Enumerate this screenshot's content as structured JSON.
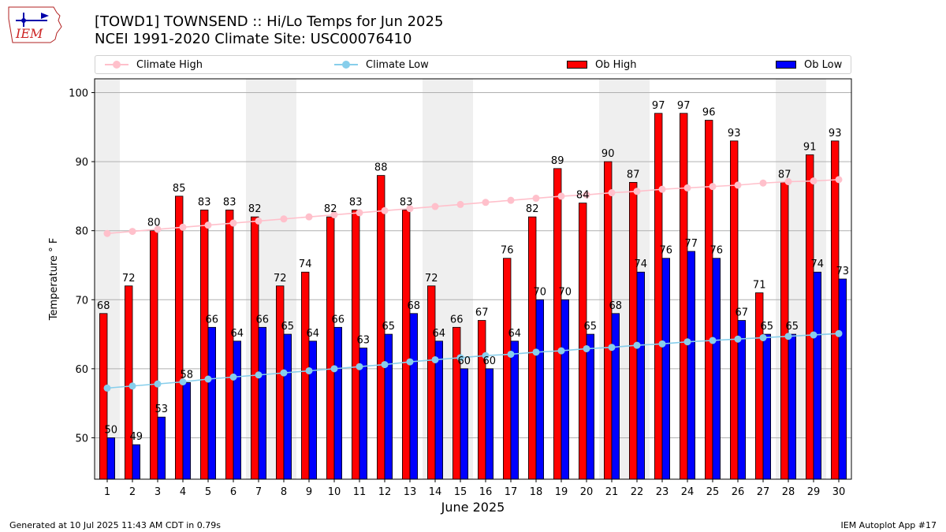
{
  "header": {
    "title_line1": "[TOWD1] TOWNSEND :: Hi/Lo Temps for Jun 2025",
    "title_line2": "NCEI 1991-2020 Climate Site: USC00076410"
  },
  "logo": {
    "text": "IEM",
    "icon": "iem-iowa-logo-icon"
  },
  "legend": {
    "climate_high": "Climate High",
    "climate_low": "Climate Low",
    "ob_high": "Ob High",
    "ob_low": "Ob Low"
  },
  "footer": {
    "left": "Generated at 10 Jul 2025 11:43 AM CDT in 0.79s",
    "right": "IEM Autoplot App #17"
  },
  "colors": {
    "ob_high": "#ff0000",
    "ob_low": "#0000ff",
    "climate_high": "#ffc0cb",
    "climate_low": "#87ceeb",
    "weekend_band": "#efefef",
    "grid": "#b0b0b0"
  },
  "chart_data": {
    "type": "bar",
    "xlabel": "June 2025",
    "ylabel": "Temperature ° F",
    "ylim": [
      44,
      102
    ],
    "yticks": [
      50,
      60,
      70,
      80,
      90,
      100
    ],
    "grid": "horizontal",
    "legend_position": "top",
    "categories": [
      "1",
      "2",
      "3",
      "4",
      "5",
      "6",
      "7",
      "8",
      "9",
      "10",
      "11",
      "12",
      "13",
      "14",
      "15",
      "16",
      "17",
      "18",
      "19",
      "20",
      "21",
      "22",
      "23",
      "24",
      "25",
      "26",
      "27",
      "28",
      "29",
      "30"
    ],
    "shaded_days": [
      1,
      7,
      8,
      14,
      15,
      21,
      22,
      28,
      29
    ],
    "series": [
      {
        "name": "Ob High",
        "kind": "bar",
        "values": [
          68,
          72,
          80,
          85,
          83,
          83,
          82,
          72,
          74,
          82,
          83,
          88,
          83,
          72,
          66,
          67,
          76,
          82,
          89,
          84,
          90,
          87,
          97,
          97,
          96,
          93,
          71,
          87,
          91,
          93
        ]
      },
      {
        "name": "Ob Low",
        "kind": "bar",
        "values": [
          50,
          49,
          53,
          58,
          66,
          64,
          66,
          65,
          64,
          66,
          63,
          65,
          68,
          64,
          60,
          60,
          64,
          70,
          70,
          65,
          68,
          74,
          76,
          77,
          76,
          67,
          65,
          65,
          74,
          73
        ]
      },
      {
        "name": "Climate High",
        "kind": "line",
        "values": [
          79.6,
          79.9,
          80.2,
          80.5,
          80.8,
          81.1,
          81.4,
          81.7,
          82.0,
          82.3,
          82.6,
          82.9,
          83.2,
          83.5,
          83.8,
          84.1,
          84.4,
          84.7,
          85.0,
          85.2,
          85.5,
          85.7,
          86.0,
          86.2,
          86.4,
          86.6,
          86.9,
          87.1,
          87.2,
          87.4
        ]
      },
      {
        "name": "Climate Low",
        "kind": "line",
        "values": [
          57.2,
          57.5,
          57.8,
          58.1,
          58.5,
          58.8,
          59.1,
          59.4,
          59.7,
          60.0,
          60.3,
          60.6,
          61.0,
          61.3,
          61.6,
          61.9,
          62.1,
          62.4,
          62.6,
          62.9,
          63.1,
          63.4,
          63.6,
          63.9,
          64.1,
          64.3,
          64.5,
          64.7,
          64.9,
          65.1
        ]
      }
    ]
  }
}
